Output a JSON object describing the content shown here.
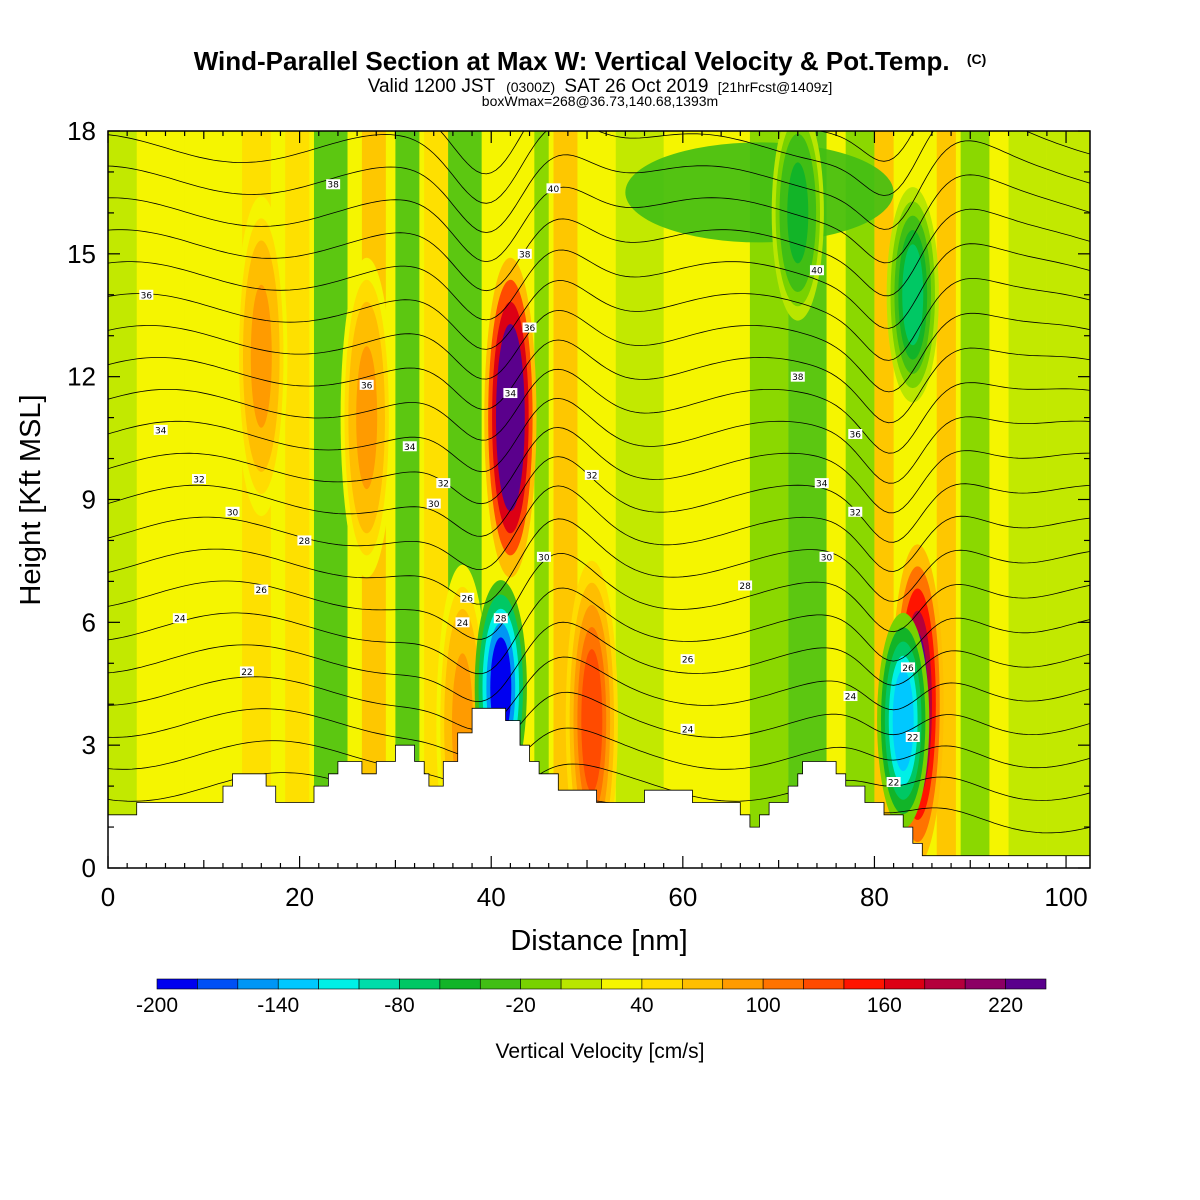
{
  "title": {
    "main": "Wind-Parallel Section at Max W: Vertical Velocity & Pot.Temp.",
    "copyright": "(C)",
    "line2_a": "Valid 1200 JST",
    "line2_b": "(0300Z)",
    "line2_c": "SAT 26 Oct 2019",
    "line2_d": "[21hrFcst@1409z]",
    "line3": "boxWmax=268@36.73,140.68,1393m"
  },
  "chart_data": {
    "type": "heatmap",
    "xlabel": "Distance [nm]",
    "ylabel": "Height [Kft MSL]",
    "xlim": [
      0,
      102.5
    ],
    "ylim": [
      0,
      18
    ],
    "x_ticks": [
      0,
      20,
      40,
      60,
      80,
      100
    ],
    "y_ticks": [
      0,
      3,
      6,
      9,
      12,
      15,
      18
    ],
    "colorbar": {
      "title": "Vertical Velocity [cm/s]",
      "min": -200,
      "max": 260,
      "step": 20,
      "labels": [
        "-200",
        "-140",
        "-80",
        "-20",
        "40",
        "100",
        "160",
        "220"
      ],
      "colors": [
        "#0000f0",
        "#0050f5",
        "#0096f5",
        "#00c8ff",
        "#00f0e6",
        "#00dcaa",
        "#00c864",
        "#12b428",
        "#41be14",
        "#78d200",
        "#b9e600",
        "#f5f500",
        "#ffdc00",
        "#ffbe00",
        "#ff9b00",
        "#ff7300",
        "#ff4b00",
        "#ff1400",
        "#dc0014",
        "#b4003c",
        "#8c0064",
        "#5a008c"
      ]
    },
    "terrain_kft": [
      [
        0,
        1.3
      ],
      [
        3,
        1.3
      ],
      [
        3,
        1.6
      ],
      [
        12,
        1.6
      ],
      [
        12,
        2.0
      ],
      [
        13,
        2.0
      ],
      [
        13,
        2.3
      ],
      [
        16.5,
        2.3
      ],
      [
        16.5,
        2.0
      ],
      [
        17.5,
        2.0
      ],
      [
        17.5,
        1.6
      ],
      [
        21.5,
        1.6
      ],
      [
        21.5,
        2.0
      ],
      [
        23,
        2.0
      ],
      [
        23,
        2.3
      ],
      [
        24,
        2.3
      ],
      [
        24,
        2.6
      ],
      [
        26.5,
        2.6
      ],
      [
        26.5,
        2.3
      ],
      [
        28,
        2.3
      ],
      [
        28,
        2.6
      ],
      [
        30,
        2.6
      ],
      [
        30,
        3.0
      ],
      [
        32,
        3.0
      ],
      [
        32,
        2.6
      ],
      [
        33,
        2.6
      ],
      [
        33,
        2.3
      ],
      [
        33.5,
        2.3
      ],
      [
        33.5,
        2.0
      ],
      [
        35,
        2.0
      ],
      [
        35,
        2.6
      ],
      [
        36.5,
        2.6
      ],
      [
        36.5,
        3.3
      ],
      [
        38,
        3.3
      ],
      [
        38,
        3.9
      ],
      [
        41.5,
        3.9
      ],
      [
        41.5,
        3.6
      ],
      [
        43,
        3.6
      ],
      [
        43,
        3.0
      ],
      [
        44,
        3.0
      ],
      [
        44,
        2.6
      ],
      [
        45,
        2.6
      ],
      [
        45,
        2.3
      ],
      [
        47,
        2.3
      ],
      [
        47,
        1.9
      ],
      [
        51,
        1.9
      ],
      [
        51,
        1.6
      ],
      [
        56,
        1.6
      ],
      [
        56,
        1.9
      ],
      [
        61,
        1.9
      ],
      [
        61,
        1.6
      ],
      [
        66,
        1.6
      ],
      [
        66,
        1.3
      ],
      [
        67,
        1.3
      ],
      [
        67,
        1.0
      ],
      [
        68,
        1.0
      ],
      [
        68,
        1.3
      ],
      [
        69,
        1.3
      ],
      [
        69,
        1.6
      ],
      [
        71,
        1.6
      ],
      [
        71,
        2.0
      ],
      [
        72,
        2.0
      ],
      [
        72,
        2.3
      ],
      [
        72.5,
        2.3
      ],
      [
        72.5,
        2.6
      ],
      [
        76,
        2.6
      ],
      [
        76,
        2.3
      ],
      [
        77,
        2.3
      ],
      [
        77,
        2.0
      ],
      [
        79,
        2.0
      ],
      [
        79,
        1.6
      ],
      [
        81,
        1.6
      ],
      [
        81,
        1.3
      ],
      [
        83,
        1.3
      ],
      [
        83,
        1.0
      ],
      [
        84,
        1.0
      ],
      [
        84,
        0.6
      ],
      [
        85,
        0.6
      ],
      [
        85,
        0.3
      ],
      [
        102.5,
        0.3
      ]
    ],
    "updrafts": [
      {
        "x": 42.0,
        "y_center": 11.0,
        "peak": 260
      },
      {
        "x": 84.5,
        "y_center": 4.0,
        "peak": 200
      },
      {
        "x": 50.5,
        "y_center": 3.6,
        "peak": 110
      },
      {
        "x": 37.0,
        "y_center": 3.5,
        "peak": 70
      },
      {
        "x": 27.0,
        "y_center": 11.0,
        "peak": 70
      },
      {
        "x": 16.0,
        "y_center": 12.5,
        "peak": 70
      }
    ],
    "downdrafts": [
      {
        "x": 41.0,
        "y_center": 4.4,
        "peak": -210
      },
      {
        "x": 83.0,
        "y_center": 3.6,
        "peak": -160
      },
      {
        "x": 84.0,
        "y_center": 14.0,
        "peak": -100
      },
      {
        "x": 72.0,
        "y_center": 16.0,
        "peak": -70
      }
    ],
    "theta_contour_labels": [
      {
        "value": "38",
        "x": 23.5,
        "y": 16.7
      },
      {
        "value": "40",
        "x": 46.5,
        "y": 16.6
      },
      {
        "value": "38",
        "x": 43.5,
        "y": 15.0
      },
      {
        "value": "40",
        "x": 74.0,
        "y": 14.6
      },
      {
        "value": "36",
        "x": 4.0,
        "y": 14.0
      },
      {
        "value": "36",
        "x": 44.0,
        "y": 13.2
      },
      {
        "value": "38",
        "x": 72.0,
        "y": 12.0
      },
      {
        "value": "36",
        "x": 27.0,
        "y": 11.8
      },
      {
        "value": "34",
        "x": 42.0,
        "y": 11.6
      },
      {
        "value": "34",
        "x": 5.5,
        "y": 10.7
      },
      {
        "value": "36",
        "x": 78.0,
        "y": 10.6
      },
      {
        "value": "34",
        "x": 31.5,
        "y": 10.3
      },
      {
        "value": "32",
        "x": 50.5,
        "y": 9.6
      },
      {
        "value": "32",
        "x": 9.5,
        "y": 9.5
      },
      {
        "value": "34",
        "x": 74.5,
        "y": 9.4
      },
      {
        "value": "32",
        "x": 35.0,
        "y": 9.4
      },
      {
        "value": "30",
        "x": 34.0,
        "y": 8.9
      },
      {
        "value": "30",
        "x": 13.0,
        "y": 8.7
      },
      {
        "value": "32",
        "x": 78.0,
        "y": 8.7
      },
      {
        "value": "28",
        "x": 20.5,
        "y": 8.0
      },
      {
        "value": "30",
        "x": 45.5,
        "y": 7.6
      },
      {
        "value": "30",
        "x": 75.0,
        "y": 7.6
      },
      {
        "value": "26",
        "x": 16.0,
        "y": 6.8
      },
      {
        "value": "28",
        "x": 66.5,
        "y": 6.9
      },
      {
        "value": "26",
        "x": 37.5,
        "y": 6.6
      },
      {
        "value": "28",
        "x": 41.0,
        "y": 6.1
      },
      {
        "value": "24",
        "x": 7.5,
        "y": 6.1
      },
      {
        "value": "24",
        "x": 37.0,
        "y": 6.0
      },
      {
        "value": "26",
        "x": 60.5,
        "y": 5.1
      },
      {
        "value": "26",
        "x": 83.5,
        "y": 4.9
      },
      {
        "value": "22",
        "x": 14.5,
        "y": 4.8
      },
      {
        "value": "24",
        "x": 77.5,
        "y": 4.2
      },
      {
        "value": "24",
        "x": 60.5,
        "y": 3.4
      },
      {
        "value": "22",
        "x": 84.0,
        "y": 3.2
      },
      {
        "value": "22",
        "x": 82.0,
        "y": 2.1
      }
    ]
  }
}
